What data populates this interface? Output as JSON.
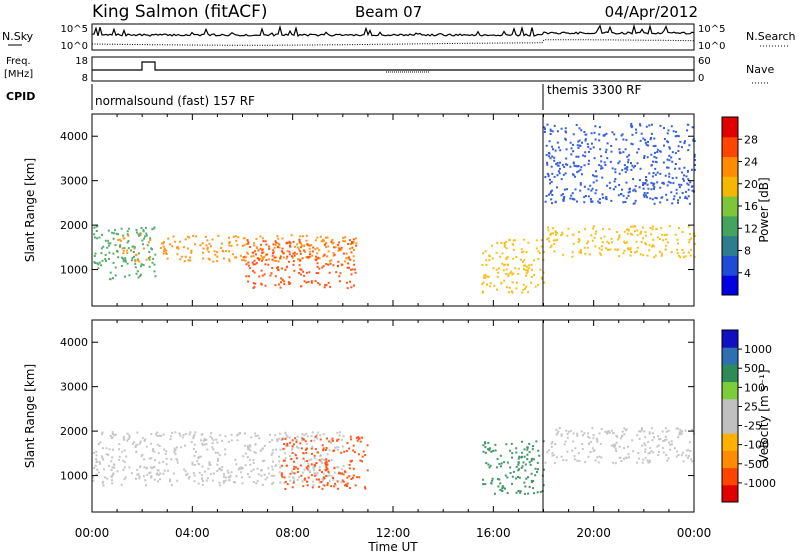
{
  "header": {
    "station": "King Salmon (fitACF)",
    "beam": "Beam 07",
    "date": "04/Apr/2012"
  },
  "noise_panel": {
    "left_label": "N.Sky",
    "right_label": "N.Search",
    "left_ticks": [
      "10^5",
      "10^0"
    ],
    "right_ticks": [
      "10^5",
      "10^0"
    ]
  },
  "freq_panel": {
    "left_label_1": "Freq.",
    "left_label_2": "[MHz]",
    "left_ticks": [
      "18",
      "8"
    ],
    "right_label": "Nave",
    "right_ticks": [
      "60",
      "0"
    ]
  },
  "cpid": {
    "label": "CPID",
    "segments": [
      {
        "start": 0,
        "end": 18,
        "name": "normalsound (fast) 157 RF"
      },
      {
        "start": 18,
        "end": 24,
        "name": "themis 3300 RF"
      }
    ]
  },
  "colors": {
    "power": [
      "#0000e0",
      "#1f4bd8",
      "#2e7d8f",
      "#44a35e",
      "#7dc63a",
      "#f5b800",
      "#ff8c00",
      "#ff4500",
      "#e00000"
    ],
    "velocity": [
      "#e00000",
      "#ff4500",
      "#ff8c00",
      "#ffb000",
      "#c0c0c0",
      "#c0c0c0",
      "#7ccd3c",
      "#2e8b57",
      "#2f6fb0",
      "#1010c0"
    ]
  },
  "chart_data": [
    {
      "type": "heatmap",
      "name": "power",
      "xlabel": "",
      "ylabel": "Slant Range [km]",
      "xlim": [
        0,
        24
      ],
      "ylim": [
        180,
        4500
      ],
      "y_ticks": [
        "1000",
        "2000",
        "3000",
        "4000"
      ],
      "colorbar": {
        "label": "Power [dB]",
        "range": [
          0,
          32
        ],
        "ticks": [
          "4",
          "8",
          "12",
          "16",
          "20",
          "24",
          "28"
        ]
      },
      "features": [
        {
          "t0": 0.0,
          "t1": 2.5,
          "r0": 800,
          "r1": 2000,
          "level": 14
        },
        {
          "t0": 1.0,
          "t1": 10.5,
          "r0": 1200,
          "r1": 1800,
          "level": 22
        },
        {
          "t0": 6.0,
          "t1": 10.5,
          "r0": 600,
          "r1": 1700,
          "level": 26
        },
        {
          "t0": 15.5,
          "t1": 18.0,
          "r0": 500,
          "r1": 1700,
          "level": 20
        },
        {
          "t0": 18.0,
          "t1": 24.0,
          "r0": 1300,
          "r1": 2000,
          "level": 18
        },
        {
          "t0": 18.0,
          "t1": 24.0,
          "r0": 2500,
          "r1": 4300,
          "level": 4
        }
      ]
    },
    {
      "type": "heatmap",
      "name": "velocity",
      "xlabel": "Time UT",
      "ylabel": "Slant Range [km]",
      "xlim": [
        0,
        24
      ],
      "ylim": [
        180,
        4500
      ],
      "y_ticks": [
        "1000",
        "2000",
        "3000",
        "4000"
      ],
      "x_ticks": [
        "00:00",
        "04:00",
        "08:00",
        "12:00",
        "16:00",
        "20:00",
        "00:00"
      ],
      "colorbar": {
        "label": "Velocity [m s⁻¹]",
        "ticks": [
          "1000",
          "500",
          "100",
          "25",
          "-25",
          "-100",
          "-500",
          "-1000"
        ]
      },
      "features": [
        {
          "t0": 0.0,
          "t1": 10.0,
          "r0": 800,
          "r1": 2000,
          "level": -10
        },
        {
          "t0": 7.5,
          "t1": 11.0,
          "r0": 700,
          "r1": 1900,
          "level": -400
        },
        {
          "t0": 15.5,
          "t1": 18.0,
          "r0": 600,
          "r1": 1800,
          "level": 150
        },
        {
          "t0": 18.0,
          "t1": 24.0,
          "r0": 1300,
          "r1": 2100,
          "level": -10
        }
      ]
    }
  ]
}
